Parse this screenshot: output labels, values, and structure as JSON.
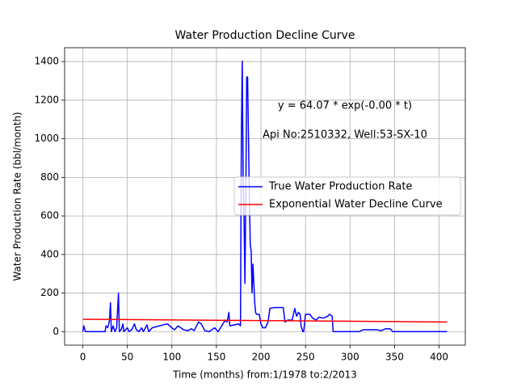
{
  "chart_data": {
    "type": "line",
    "title": "Water Production Decline Curve",
    "xlabel": "Time (months) from:1/1978 to:2/2013",
    "ylabel": "Water Production Rate (bbl/month)",
    "annotations": [
      "y = 64.07 * exp(-0.00 * t)",
      "Api No:2510332, Well:53-SX-10"
    ],
    "series": [
      {
        "name": "True Water Production Rate",
        "color": "#0000ff",
        "x": [
          0,
          1,
          3,
          25,
          26,
          28,
          30,
          31,
          32,
          34,
          36,
          38,
          40,
          41,
          43,
          45,
          46,
          50,
          52,
          55,
          58,
          60,
          63,
          66,
          68,
          72,
          74,
          78,
          82,
          86,
          90,
          95,
          100,
          103,
          107,
          110,
          113,
          118,
          122,
          125,
          130,
          133,
          137,
          142,
          145,
          148,
          152,
          160,
          162,
          164,
          165,
          170,
          175,
          177,
          178,
          179,
          180,
          181,
          182,
          183,
          184,
          185,
          186,
          187,
          188,
          189,
          190,
          191,
          192,
          193,
          194,
          195,
          198,
          200,
          202,
          205,
          208,
          210,
          215,
          220,
          225,
          227,
          230,
          235,
          238,
          240,
          242,
          244,
          245,
          247,
          248,
          250,
          255,
          258,
          262,
          265,
          270,
          275,
          277,
          280,
          281,
          300,
          310,
          315,
          320,
          330,
          335,
          340,
          345,
          348,
          360,
          409
        ],
        "values": [
          0,
          30,
          0,
          0,
          30,
          20,
          60,
          150,
          0,
          30,
          0,
          20,
          200,
          0,
          10,
          40,
          0,
          20,
          0,
          10,
          40,
          10,
          0,
          20,
          0,
          35,
          0,
          20,
          25,
          30,
          35,
          40,
          20,
          10,
          30,
          20,
          10,
          5,
          15,
          5,
          50,
          40,
          5,
          0,
          10,
          20,
          0,
          60,
          50,
          100,
          30,
          35,
          40,
          30,
          1000,
          1402,
          800,
          600,
          250,
          700,
          1320,
          1320,
          1000,
          700,
          450,
          420,
          200,
          350,
          250,
          150,
          100,
          90,
          90,
          40,
          20,
          20,
          50,
          120,
          125,
          125,
          125,
          50,
          60,
          60,
          120,
          80,
          100,
          90,
          30,
          0,
          0,
          90,
          90,
          70,
          60,
          75,
          70,
          80,
          90,
          80,
          0,
          0,
          0,
          10,
          10,
          10,
          5,
          15,
          15,
          0,
          0,
          0
        ]
      },
      {
        "name": "Exponential Water Decline Curve",
        "color": "#ff0000",
        "x": [
          0,
          409
        ],
        "values": [
          64.07,
          50
        ]
      }
    ],
    "xlim": [
      -20.45,
      429.45
    ],
    "xticks": [
      0,
      50,
      100,
      150,
      200,
      250,
      300,
      350,
      400
    ],
    "ylim": [
      -70.1,
      1472.1
    ],
    "yticks": [
      0,
      200,
      400,
      600,
      800,
      1000,
      1200,
      1400
    ],
    "grid": true,
    "legend": "center right"
  }
}
